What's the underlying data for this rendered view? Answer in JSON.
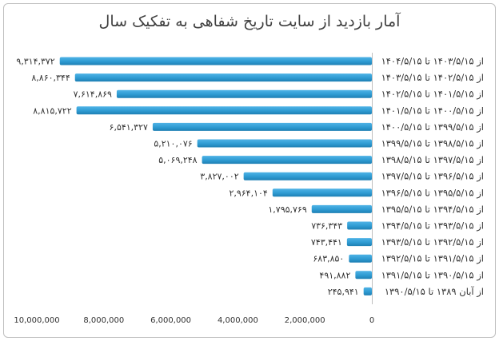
{
  "chart_data": {
    "type": "bar",
    "orientation": "horizontal",
    "title": "آمار بازدید از سایت تاریخ شفاهی به تفکیک سال",
    "color": "#2E9BD2",
    "xlim": [
      0,
      10000000
    ],
    "x_ticks": [
      {
        "value": 10000000,
        "label": "10,000,000"
      },
      {
        "value": 8000000,
        "label": "8,000,000"
      },
      {
        "value": 6000000,
        "label": "6,000,000"
      },
      {
        "value": 4000000,
        "label": "4,000,000"
      },
      {
        "value": 2000000,
        "label": "2,000,000"
      },
      {
        "value": 0,
        "label": "0"
      }
    ],
    "categories": [
      "از ۱۴۰۳/۵/۱۵ تا ۱۴۰۴/۵/۱۵",
      "از ۱۴۰۲/۵/۱۵ تا ۱۴۰۳/۵/۱۵",
      "از ۱۴۰۱/۵/۱۵ تا ۱۴۰۲/۵/۱۵",
      "از ۱۴۰۰/۵/۱۵ تا ۱۴۰۱/۵/۱۵",
      "از ۱۳۹۹/۵/۱۵ تا ۱۴۰۰/۵/۱۵",
      "از ۱۳۹۸/۵/۱۵ تا ۱۳۹۹/۵/۱۵",
      "از ۱۳۹۷/۵/۱۵ تا ۱۳۹۸/۵/۱۵",
      "از ۱۳۹۶/۵/۱۵ تا ۱۳۹۷/۵/۱۵",
      "از ۱۳۹۵/۵/۱۵ تا ۱۳۹۶/۵/۱۵",
      "از ۱۳۹۴/۵/۱۵ تا ۱۳۹۵/۵/۱۵",
      "از ۱۳۹۳/۵/۱۵ تا ۱۳۹۴/۵/۱۵",
      "از ۱۳۹۲/۵/۱۵ تا ۱۳۹۳/۵/۱۵",
      "از ۱۳۹۱/۵/۱۵ تا ۱۳۹۲/۵/۱۵",
      "از ۱۳۹۰/۵/۱۵ تا ۱۳۹۱/۵/۱۵",
      "از آبان ۱۳۸۹ تا ۱۳۹۰/۵/۱۵"
    ],
    "values": [
      9314372,
      8860344,
      7614869,
      8815722,
      6541327,
      5210076,
      5069248,
      3827002,
      2964104,
      1795769,
      736343,
      743441,
      683850,
      491882,
      245941
    ],
    "value_labels": [
      "۹,۳۱۴,۳۷۲",
      "۸,۸۶۰,۳۴۴",
      "۷,۶۱۴,۸۶۹",
      "۸,۸۱۵,۷۲۲",
      "۶,۵۴۱,۳۲۷",
      "۵,۲۱۰,۰۷۶",
      "۵,۰۶۹,۲۴۸",
      "۳,۸۲۷,۰۰۲",
      "۲,۹۶۴,۱۰۴",
      "۱,۷۹۵,۷۶۹",
      "۷۳۶,۳۴۳",
      "۷۴۳,۴۴۱",
      "۶۸۳,۸۵۰",
      "۴۹۱,۸۸۲",
      "۲۴۵,۹۴۱"
    ]
  }
}
